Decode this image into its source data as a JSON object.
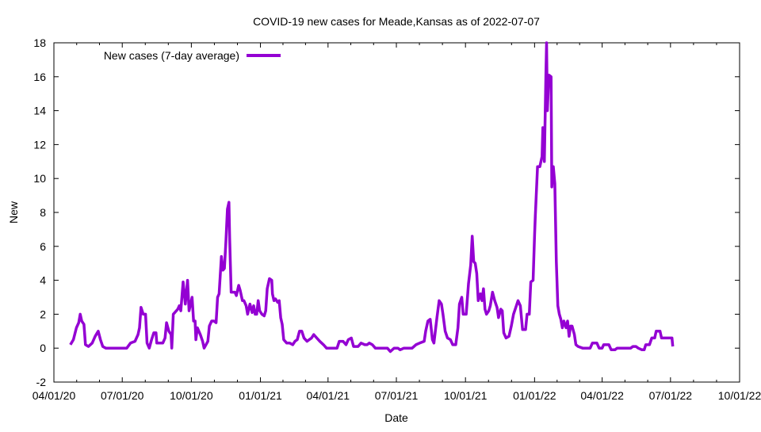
{
  "chart_data": {
    "type": "line",
    "title": "COVID-19 new cases for Meade,Kansas as of 2022-07-07",
    "xlabel": "Date",
    "ylabel": "New",
    "x_unit": "days since 2020-04-01",
    "xlim": [
      0,
      913
    ],
    "ylim": [
      -2,
      18
    ],
    "grid": false,
    "legend_position": "top-left",
    "x_ticks": [
      {
        "label": "04/01/20",
        "day": 0
      },
      {
        "label": "07/01/20",
        "day": 91
      },
      {
        "label": "10/01/20",
        "day": 183
      },
      {
        "label": "01/01/21",
        "day": 275
      },
      {
        "label": "04/01/21",
        "day": 365
      },
      {
        "label": "07/01/21",
        "day": 456
      },
      {
        "label": "10/01/21",
        "day": 548
      },
      {
        "label": "01/01/22",
        "day": 640
      },
      {
        "label": "04/01/22",
        "day": 730
      },
      {
        "label": "07/01/22",
        "day": 821
      },
      {
        "label": "10/01/22",
        "day": 913
      }
    ],
    "y_ticks": [
      "-2",
      "0",
      "2",
      "4",
      "6",
      "8",
      "10",
      "12",
      "14",
      "16",
      "18"
    ],
    "series": [
      {
        "name": "New cases (7-day average)",
        "color": "#9400d3",
        "points": [
          [
            22,
            0.2
          ],
          [
            26,
            0.5
          ],
          [
            30,
            1.2
          ],
          [
            33,
            1.5
          ],
          [
            35,
            2.0
          ],
          [
            37,
            1.6
          ],
          [
            40,
            1.4
          ],
          [
            42,
            0.2
          ],
          [
            46,
            0.1
          ],
          [
            51,
            0.3
          ],
          [
            55,
            0.7
          ],
          [
            59,
            1.0
          ],
          [
            62,
            0.5
          ],
          [
            65,
            0.1
          ],
          [
            69,
            0
          ],
          [
            97,
            0
          ],
          [
            102,
            0.3
          ],
          [
            108,
            0.4
          ],
          [
            112,
            0.8
          ],
          [
            114,
            1.2
          ],
          [
            116,
            2.4
          ],
          [
            119,
            2.0
          ],
          [
            122,
            2.0
          ],
          [
            124,
            0.3
          ],
          [
            127,
            0
          ],
          [
            130,
            0.5
          ],
          [
            133,
            0.9
          ],
          [
            136,
            0.9
          ],
          [
            137,
            0.3
          ],
          [
            145,
            0.3
          ],
          [
            148,
            0.6
          ],
          [
            150,
            1.5
          ],
          [
            153,
            1.0
          ],
          [
            156,
            0.8
          ],
          [
            157,
            0
          ],
          [
            159,
            2.0
          ],
          [
            165,
            2.3
          ],
          [
            167,
            2.5
          ],
          [
            169,
            2.2
          ],
          [
            172,
            3.9
          ],
          [
            175,
            2.6
          ],
          [
            178,
            4.0
          ],
          [
            180,
            2.2
          ],
          [
            184,
            3.0
          ],
          [
            186,
            1.6
          ],
          [
            188,
            1.6
          ],
          [
            189,
            0.5
          ],
          [
            191,
            1.2
          ],
          [
            195,
            0.8
          ],
          [
            198,
            0.4
          ],
          [
            200,
            0
          ],
          [
            205,
            0.4
          ],
          [
            207,
            1.3
          ],
          [
            210,
            1.6
          ],
          [
            213,
            1.6
          ],
          [
            216,
            1.5
          ],
          [
            218,
            3.0
          ],
          [
            220,
            3.2
          ],
          [
            223,
            5.4
          ],
          [
            225,
            4.6
          ],
          [
            227,
            4.7
          ],
          [
            229,
            6.3
          ],
          [
            231,
            8.2
          ],
          [
            233,
            8.6
          ],
          [
            234,
            6.5
          ],
          [
            236,
            3.3
          ],
          [
            241,
            3.3
          ],
          [
            243,
            3.1
          ],
          [
            246,
            3.7
          ],
          [
            248,
            3.4
          ],
          [
            251,
            2.8
          ],
          [
            253,
            2.8
          ],
          [
            256,
            2.5
          ],
          [
            258,
            2.0
          ],
          [
            261,
            2.6
          ],
          [
            264,
            2.1
          ],
          [
            266,
            2.5
          ],
          [
            268,
            2.0
          ],
          [
            270,
            2.0
          ],
          [
            272,
            2.8
          ],
          [
            274,
            2.2
          ],
          [
            277,
            2.0
          ],
          [
            280,
            1.9
          ],
          [
            282,
            2.2
          ],
          [
            284,
            3.5
          ],
          [
            287,
            4.1
          ],
          [
            290,
            4.0
          ],
          [
            291,
            3.2
          ],
          [
            293,
            2.8
          ],
          [
            295,
            2.9
          ],
          [
            298,
            2.7
          ],
          [
            300,
            2.8
          ],
          [
            302,
            1.8
          ],
          [
            304,
            1.4
          ],
          [
            306,
            0.5
          ],
          [
            310,
            0.3
          ],
          [
            314,
            0.3
          ],
          [
            318,
            0.2
          ],
          [
            321,
            0.4
          ],
          [
            324,
            0.5
          ],
          [
            327,
            1.0
          ],
          [
            330,
            1.0
          ],
          [
            333,
            0.6
          ],
          [
            337,
            0.4
          ],
          [
            340,
            0.5
          ],
          [
            343,
            0.6
          ],
          [
            346,
            0.8
          ],
          [
            350,
            0.6
          ],
          [
            354,
            0.4
          ],
          [
            359,
            0.2
          ],
          [
            363,
            0
          ],
          [
            377,
            0
          ],
          [
            380,
            0.4
          ],
          [
            385,
            0.4
          ],
          [
            389,
            0.2
          ],
          [
            392,
            0.5
          ],
          [
            396,
            0.6
          ],
          [
            399,
            0.1
          ],
          [
            405,
            0.1
          ],
          [
            409,
            0.3
          ],
          [
            414,
            0.2
          ],
          [
            417,
            0.2
          ],
          [
            420,
            0.3
          ],
          [
            424,
            0.2
          ],
          [
            428,
            0
          ],
          [
            435,
            0
          ],
          [
            444,
            0
          ],
          [
            448,
            -0.2
          ],
          [
            453,
            0
          ],
          [
            458,
            0
          ],
          [
            461,
            -0.1
          ],
          [
            466,
            0
          ],
          [
            477,
            0
          ],
          [
            482,
            0.2
          ],
          [
            487,
            0.3
          ],
          [
            493,
            0.4
          ],
          [
            495,
            1.0
          ],
          [
            498,
            1.6
          ],
          [
            501,
            1.7
          ],
          [
            504,
            0.5
          ],
          [
            506,
            0.3
          ],
          [
            510,
            1.8
          ],
          [
            513,
            2.8
          ],
          [
            516,
            2.6
          ],
          [
            518,
            2.0
          ],
          [
            521,
            1.0
          ],
          [
            524,
            0.6
          ],
          [
            528,
            0.5
          ],
          [
            531,
            0.2
          ],
          [
            535,
            0.2
          ],
          [
            538,
            1.2
          ],
          [
            540,
            2.6
          ],
          [
            543,
            3.0
          ],
          [
            545,
            2.0
          ],
          [
            549,
            2.0
          ],
          [
            552,
            3.8
          ],
          [
            555,
            4.9
          ],
          [
            557,
            6.6
          ],
          [
            559,
            5.1
          ],
          [
            561,
            5.0
          ],
          [
            563,
            4.4
          ],
          [
            565,
            2.8
          ],
          [
            568,
            3.2
          ],
          [
            570,
            2.8
          ],
          [
            572,
            3.5
          ],
          [
            574,
            2.3
          ],
          [
            576,
            2.0
          ],
          [
            579,
            2.2
          ],
          [
            581,
            2.5
          ],
          [
            584,
            3.3
          ],
          [
            587,
            2.8
          ],
          [
            590,
            2.4
          ],
          [
            592,
            1.8
          ],
          [
            595,
            2.3
          ],
          [
            597,
            2.2
          ],
          [
            599,
            0.9
          ],
          [
            602,
            0.6
          ],
          [
            606,
            0.7
          ],
          [
            609,
            1.3
          ],
          [
            612,
            2.0
          ],
          [
            615,
            2.4
          ],
          [
            618,
            2.8
          ],
          [
            621,
            2.5
          ],
          [
            624,
            1.1
          ],
          [
            628,
            1.1
          ],
          [
            630,
            2.0
          ],
          [
            633,
            2.0
          ],
          [
            635,
            3.9
          ],
          [
            638,
            4.0
          ],
          [
            640,
            6.7
          ],
          [
            641,
            7.8
          ],
          [
            644,
            10.7
          ],
          [
            647,
            10.7
          ],
          [
            650,
            11.3
          ],
          [
            651,
            13.0
          ],
          [
            653,
            11.0
          ],
          [
            655,
            16.0
          ],
          [
            656,
            18.0
          ],
          [
            657,
            14.0
          ],
          [
            659,
            16.1
          ],
          [
            662,
            16.0
          ],
          [
            663,
            9.5
          ],
          [
            665,
            10.7
          ],
          [
            667,
            9.7
          ],
          [
            669,
            5.1
          ],
          [
            671,
            2.5
          ],
          [
            673,
            2.0
          ],
          [
            675,
            1.7
          ],
          [
            677,
            1.2
          ],
          [
            679,
            1.6
          ],
          [
            682,
            1.2
          ],
          [
            684,
            1.6
          ],
          [
            686,
            0.7
          ],
          [
            688,
            1.3
          ],
          [
            690,
            1.3
          ],
          [
            693,
            0.8
          ],
          [
            695,
            0.2
          ],
          [
            698,
            0.1
          ],
          [
            704,
            0
          ],
          [
            714,
            0
          ],
          [
            717,
            0.3
          ],
          [
            723,
            0.3
          ],
          [
            726,
            0
          ],
          [
            730,
            0
          ],
          [
            732,
            0.2
          ],
          [
            739,
            0.2
          ],
          [
            742,
            -0.1
          ],
          [
            747,
            -0.1
          ],
          [
            750,
            0
          ],
          [
            768,
            0
          ],
          [
            771,
            0.1
          ],
          [
            775,
            0.1
          ],
          [
            778,
            0
          ],
          [
            783,
            -0.1
          ],
          [
            786,
            -0.1
          ],
          [
            788,
            0.2
          ],
          [
            793,
            0.2
          ],
          [
            796,
            0.6
          ],
          [
            800,
            0.6
          ],
          [
            802,
            1.0
          ],
          [
            807,
            1.0
          ],
          [
            809,
            0.6
          ],
          [
            823,
            0.6
          ],
          [
            824,
            0.1
          ]
        ]
      }
    ]
  }
}
